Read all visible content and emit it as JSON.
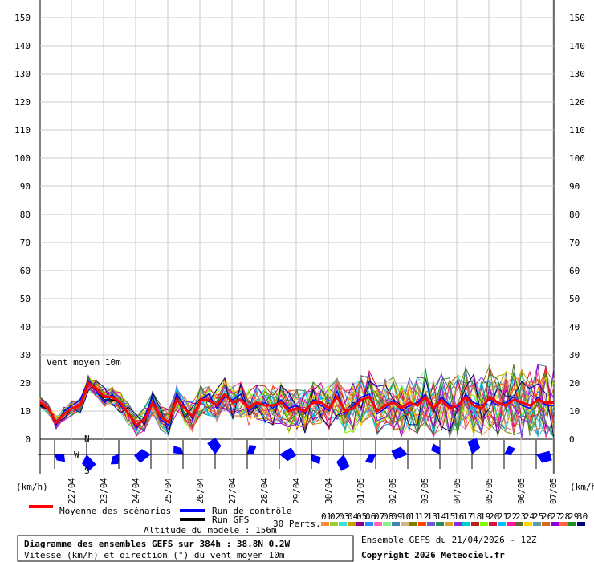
{
  "chart_data": {
    "type": "line",
    "title": "Vent moyen 10m",
    "ylim": [
      0,
      150
    ],
    "y_ticks": [
      0,
      10,
      20,
      30,
      40,
      50,
      60,
      70,
      80,
      90,
      100,
      110,
      120,
      130,
      140,
      150
    ],
    "y_unit": "(km/h)",
    "x_range": [
      0,
      64
    ],
    "x_tick_labels": [
      "22/04",
      "23/04",
      "24/04",
      "25/04",
      "26/04",
      "27/04",
      "28/04",
      "29/04",
      "30/04",
      "01/05",
      "02/05",
      "03/05",
      "04/05",
      "05/05",
      "06/05",
      "07/05"
    ],
    "x_tick_positions": [
      4,
      8,
      12,
      16,
      20,
      24,
      28,
      32,
      36,
      40,
      44,
      48,
      52,
      56,
      60,
      64
    ],
    "grid": true,
    "series": [
      {
        "name": "Moyenne des scénarios",
        "values": [
          13,
          11,
          6,
          9,
          11,
          12,
          20,
          18,
          15,
          15,
          13,
          9,
          5,
          7,
          13,
          8,
          6,
          14,
          11,
          8,
          14,
          14,
          12,
          16,
          13,
          14,
          11,
          13,
          12,
          12,
          13,
          10,
          11,
          10,
          13,
          13,
          11,
          15,
          10,
          11,
          14,
          15,
          10,
          12,
          13,
          11,
          13,
          12,
          15,
          11,
          14,
          11,
          12,
          15,
          12,
          11,
          15,
          13,
          12,
          14,
          13,
          12,
          14,
          13,
          13
        ]
      },
      {
        "name": "Run de contrôle",
        "values": [
          13,
          11,
          5,
          10,
          12,
          14,
          21,
          17,
          13,
          16,
          12,
          9,
          4,
          8,
          15,
          7,
          5,
          16,
          12,
          7,
          14,
          16,
          11,
          15,
          14,
          16,
          10,
          12,
          13,
          11,
          14,
          11,
          12,
          9,
          14,
          12,
          10,
          17,
          9,
          12,
          15,
          16,
          9,
          11,
          14,
          10,
          12,
          13,
          16,
          10,
          15,
          12,
          11,
          16,
          13,
          12,
          14,
          12,
          13,
          15,
          12,
          11,
          15,
          12,
          12
        ]
      },
      {
        "name": "Run GFS",
        "values": [
          12,
          11,
          6,
          9,
          11,
          12,
          20,
          18,
          14,
          14,
          13,
          9,
          5,
          7,
          13,
          8,
          6,
          14,
          11,
          8,
          14,
          14,
          12,
          16,
          13,
          14,
          11,
          13,
          12,
          12,
          13,
          10,
          11,
          10,
          13,
          13,
          11,
          15,
          10,
          11,
          14,
          15,
          10,
          12,
          13,
          11,
          13,
          12,
          15,
          11,
          14,
          11,
          12,
          15,
          12,
          11,
          15,
          13,
          12,
          14,
          13,
          12,
          14,
          13,
          13
        ]
      }
    ],
    "wind_rose_days_count": 16
  },
  "legend": {
    "mean_label": "Moyenne des scénarios",
    "control_label": "Run de contrôle",
    "gfs_label": "Run GFS",
    "perts_label": "30 Perts.",
    "pert_numbers": [
      "01",
      "02",
      "03",
      "04",
      "05",
      "06",
      "07",
      "08",
      "09",
      "10",
      "11",
      "12",
      "13",
      "14",
      "15",
      "16",
      "17",
      "18",
      "19",
      "20",
      "21",
      "22",
      "23",
      "24",
      "25",
      "26",
      "27",
      "28",
      "29",
      "30"
    ],
    "pert_colors": [
      "#ff8a3c",
      "#9acd32",
      "#40e0d0",
      "#c8a000",
      "#8b008b",
      "#1e90ff",
      "#ff69b4",
      "#90ee90",
      "#4682b4",
      "#d2b48c",
      "#808000",
      "#ff4500",
      "#6a5acd",
      "#2e8b57",
      "#daa520",
      "#8a2be2",
      "#00ced1",
      "#b22222",
      "#7fff00",
      "#dc143c",
      "#00bfff",
      "#ff1493",
      "#556b2f",
      "#ffd700",
      "#5f9ea0",
      "#d2691e",
      "#9400d3",
      "#ff6347",
      "#228b22",
      "#000080"
    ]
  },
  "colors": {
    "mean": "#ff0000",
    "control": "#0000ff",
    "gfs": "#000000",
    "rose": "#0000ff"
  },
  "labels": {
    "title_line1": "Diagramme des ensembles GEFS sur 384h : 38.8N 0.2W",
    "title_line2": "Vitesse (km/h) et direction (°) du vent moyen 10m",
    "altitude": "Altitude du modele : 156m",
    "ensemble": "Ensemble GEFS du 21/04/2026 - 12Z",
    "copyright": "Copyright 2026 Meteociel.fr",
    "unit_left": "(km/h)",
    "unit_right": "(km/h)",
    "rose_N": "N",
    "rose_W": "W",
    "rose_S": "S"
  }
}
